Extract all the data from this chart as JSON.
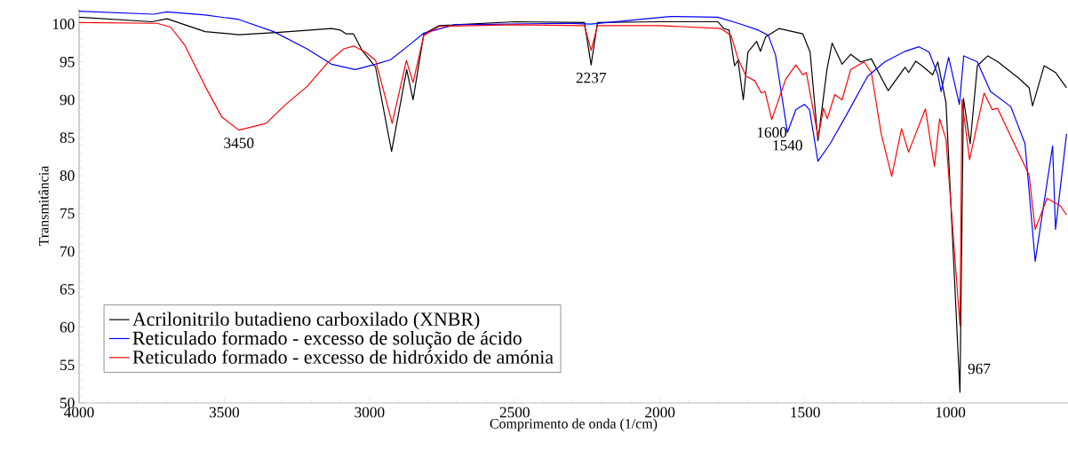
{
  "chart_data": {
    "type": "line",
    "xlabel": "Comprimento de onda (1/cm)",
    "ylabel": "Transmitância",
    "xlim": [
      4000,
      595
    ],
    "ylim": [
      50,
      102
    ],
    "xticks": [
      4000,
      3500,
      3000,
      2500,
      2000,
      1500,
      1000
    ],
    "yticks": [
      50,
      55,
      60,
      65,
      70,
      75,
      80,
      85,
      90,
      95,
      100
    ],
    "legend": "bottom left",
    "series": [
      {
        "name": "Acrilonitrilo butadieno carboxilado (XNBR)",
        "color": "#000000",
        "x": [
          4000,
          3749,
          3697,
          3566,
          3450,
          3309,
          3131,
          3100,
          3080,
          3055,
          3025,
          2979,
          2924,
          2872,
          2850,
          2813,
          2760,
          2500,
          2260,
          2237,
          2215,
          2000,
          1800,
          1780,
          1762,
          1743,
          1731,
          1713,
          1697,
          1667,
          1654,
          1636,
          1590,
          1508,
          1483,
          1456,
          1425,
          1407,
          1373,
          1343,
          1309,
          1272,
          1214,
          1156,
          1144,
          1119,
          1098,
          1061,
          1043,
          1015,
          967,
          955,
          932,
          907,
          871,
          836,
          766,
          729,
          717,
          677,
          638,
          600
        ],
        "values": [
          100.9,
          100.3,
          100.7,
          99.0,
          98.6,
          98.9,
          99.4,
          99.2,
          98.7,
          98.7,
          96.5,
          94.3,
          83.2,
          94.0,
          90.0,
          98.7,
          99.8,
          100.3,
          100.2,
          94.6,
          100.2,
          100.3,
          100.3,
          99.4,
          99.2,
          94.5,
          95.2,
          90.0,
          96.3,
          97.7,
          96.4,
          98.3,
          99.4,
          98.7,
          96.3,
          84.6,
          94.0,
          97.5,
          94.7,
          96.0,
          95.0,
          95.4,
          91.2,
          94.3,
          93.6,
          95.1,
          94.5,
          93.3,
          95.0,
          89.6,
          51.4,
          90.2,
          84.2,
          94.5,
          95.8,
          95.0,
          92.9,
          91.6,
          89.2,
          94.5,
          93.6,
          91.6
        ]
      },
      {
        "name": "Reticulado formado - excesso de solução de ácido",
        "color": "#0000ff",
        "x": [
          4000,
          3743,
          3697,
          3566,
          3450,
          3330,
          3214,
          3131,
          3049,
          2979,
          2927,
          2861,
          2813,
          2708,
          2321,
          2237,
          1966,
          1801,
          1731,
          1661,
          1627,
          1602,
          1561,
          1532,
          1502,
          1485,
          1456,
          1414,
          1355,
          1285,
          1226,
          1156,
          1108,
          1073,
          1043,
          1032,
          1006,
          969,
          954,
          907,
          862,
          792,
          743,
          708,
          648,
          638,
          600
        ],
        "values": [
          101.7,
          101.3,
          101.6,
          101.2,
          100.6,
          99.0,
          96.7,
          94.7,
          94.0,
          94.7,
          95.3,
          97.3,
          98.8,
          99.9,
          100.1,
          100.0,
          101.0,
          100.9,
          100.1,
          99.2,
          98.5,
          95.9,
          85.7,
          88.7,
          89.4,
          88.7,
          81.9,
          84.2,
          88.2,
          93.1,
          95.0,
          96.4,
          97.0,
          96.3,
          93.3,
          91.1,
          95.6,
          89.4,
          95.8,
          95.0,
          91.1,
          89.1,
          84.2,
          68.7,
          83.9,
          72.9,
          85.5
        ]
      },
      {
        "name": "Reticulado formado - excesso de hidróxido de amónia",
        "color": "#ff0000",
        "x": [
          4000,
          3731,
          3685,
          3636,
          3566,
          3508,
          3450,
          3355,
          3297,
          3214,
          3144,
          3090,
          3055,
          3014,
          2979,
          2922,
          2873,
          2850,
          2813,
          2760,
          2500,
          2260,
          2237,
          2215,
          2000,
          1790,
          1755,
          1731,
          1703,
          1673,
          1651,
          1638,
          1615,
          1567,
          1532,
          1508,
          1496,
          1455,
          1437,
          1424,
          1398,
          1373,
          1343,
          1297,
          1272,
          1238,
          1202,
          1168,
          1144,
          1086,
          1055,
          1037,
          1015,
          967,
          960,
          934,
          884,
          856,
          838,
          780,
          729,
          708,
          667,
          621,
          600
        ],
        "values": [
          100.2,
          100.1,
          99.6,
          97.2,
          91.8,
          87.7,
          86.0,
          86.9,
          89.1,
          91.8,
          94.9,
          96.7,
          97.1,
          96.3,
          95.2,
          86.9,
          95.2,
          92.3,
          98.5,
          99.7,
          99.9,
          99.8,
          96.5,
          99.8,
          99.8,
          99.4,
          98.5,
          95.4,
          93.1,
          92.5,
          90.9,
          91.1,
          87.4,
          92.7,
          94.6,
          93.3,
          93.6,
          85.0,
          88.9,
          87.5,
          90.7,
          90.0,
          94.0,
          95.0,
          93.6,
          85.5,
          79.9,
          86.2,
          83.1,
          88.8,
          81.2,
          87.5,
          84.8,
          60.2,
          90.0,
          82.1,
          90.9,
          88.7,
          88.9,
          84.2,
          80.1,
          72.9,
          77.0,
          76.0,
          74.8
        ]
      }
    ],
    "annotations": [
      {
        "text": "3450",
        "x": 3450,
        "y": 86.0
      },
      {
        "text": "2237",
        "x": 2237,
        "y": 94.6
      },
      {
        "text": "1600",
        "x": 1615,
        "y": 87.4
      },
      {
        "text": "1540",
        "x": 1561,
        "y": 85.7
      },
      {
        "text": "967",
        "x": 967,
        "y": 51.4
      }
    ]
  }
}
